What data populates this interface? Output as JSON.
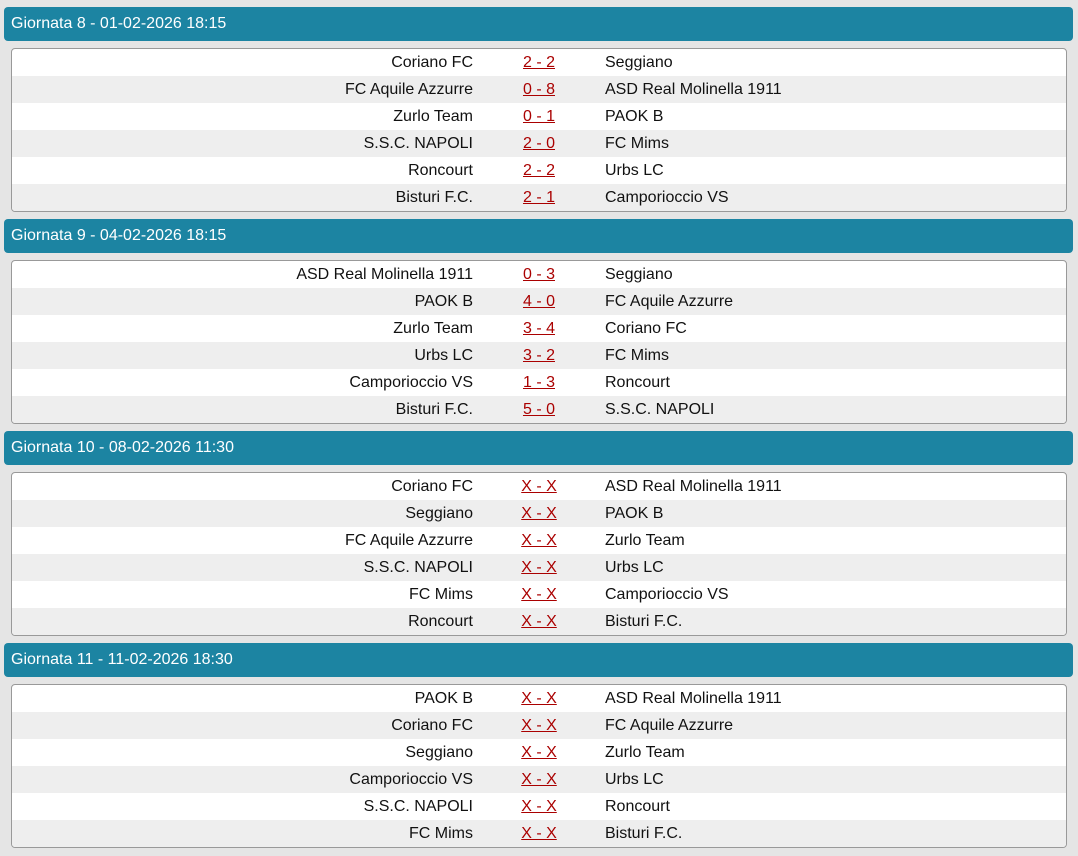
{
  "rounds": [
    {
      "title": "Giornata 8 - 01-02-2026 18:15",
      "matches": [
        [
          "Coriano FC",
          "2 - 2",
          "Seggiano"
        ],
        [
          "FC Aquile Azzurre",
          "0 - 8",
          "ASD Real Molinella 1911"
        ],
        [
          "Zurlo Team",
          "0 - 1",
          "PAOK B"
        ],
        [
          "S.S.C. NAPOLI",
          "2 - 0",
          "FC Mims"
        ],
        [
          "Roncourt",
          "2 - 2",
          "Urbs LC"
        ],
        [
          "Bisturi F.C.",
          "2 - 1",
          "Camporioccio VS"
        ]
      ]
    },
    {
      "title": "Giornata 9 - 04-02-2026 18:15",
      "matches": [
        [
          "ASD Real Molinella 1911",
          "0 - 3",
          "Seggiano"
        ],
        [
          "PAOK B",
          "4 - 0",
          "FC Aquile Azzurre"
        ],
        [
          "Zurlo Team",
          "3 - 4",
          "Coriano FC"
        ],
        [
          "Urbs LC",
          "3 - 2",
          "FC Mims"
        ],
        [
          "Camporioccio VS",
          "1 - 3",
          "Roncourt"
        ],
        [
          "Bisturi F.C.",
          "5 - 0",
          "S.S.C. NAPOLI"
        ]
      ]
    },
    {
      "title": "Giornata 10 - 08-02-2026 11:30",
      "matches": [
        [
          "Coriano FC",
          "X - X",
          "ASD Real Molinella 1911"
        ],
        [
          "Seggiano",
          "X - X",
          "PAOK B"
        ],
        [
          "FC Aquile Azzurre",
          "X - X",
          "Zurlo Team"
        ],
        [
          "S.S.C. NAPOLI",
          "X - X",
          "Urbs LC"
        ],
        [
          "FC Mims",
          "X - X",
          "Camporioccio VS"
        ],
        [
          "Roncourt",
          "X - X",
          "Bisturi F.C."
        ]
      ]
    },
    {
      "title": "Giornata 11 - 11-02-2026 18:30",
      "matches": [
        [
          "PAOK B",
          "X - X",
          "ASD Real Molinella 1911"
        ],
        [
          "Coriano FC",
          "X - X",
          "FC Aquile Azzurre"
        ],
        [
          "Seggiano",
          "X - X",
          "Zurlo Team"
        ],
        [
          "Camporioccio VS",
          "X - X",
          "Urbs LC"
        ],
        [
          "S.S.C. NAPOLI",
          "X - X",
          "Roncourt"
        ],
        [
          "FC Mims",
          "X - X",
          "Bisturi F.C."
        ]
      ]
    }
  ],
  "colors": {
    "header": "#1c84a2",
    "score": "#aa0000",
    "background": "#e5e5e5"
  }
}
